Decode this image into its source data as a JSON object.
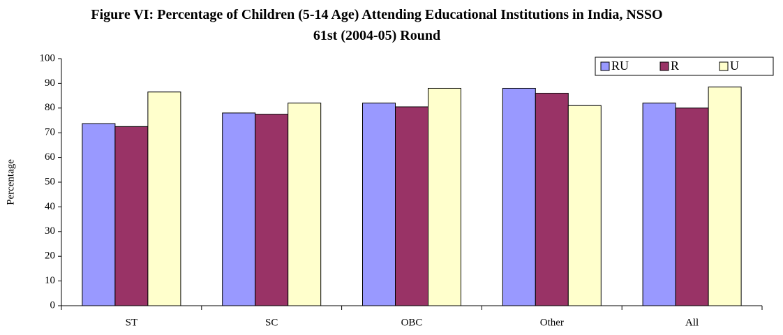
{
  "chart_data": {
    "type": "bar",
    "title": "Figure VI: Percentage of Children (5-14 Age) Attending Educational Institutions in India, NSSO 61st (2004-05) Round",
    "y_label": "Percentage",
    "categories": [
      "ST",
      "SC",
      "OBC",
      "Other",
      "All"
    ],
    "series": [
      {
        "name": "RU",
        "color": "#9999ff",
        "values": [
          73.7,
          78,
          82,
          88,
          82
        ]
      },
      {
        "name": "R",
        "color": "#993366",
        "values": [
          72.5,
          77.5,
          80.5,
          86,
          80
        ]
      },
      {
        "name": "U",
        "color": "#ffffcc",
        "values": [
          86.5,
          82,
          88,
          81,
          88.5
        ]
      }
    ],
    "ylim": [
      0,
      100
    ],
    "yticks": [
      0,
      10,
      20,
      30,
      40,
      50,
      60,
      70,
      80,
      90,
      100
    ],
    "grid": false,
    "legend": "top-right"
  }
}
